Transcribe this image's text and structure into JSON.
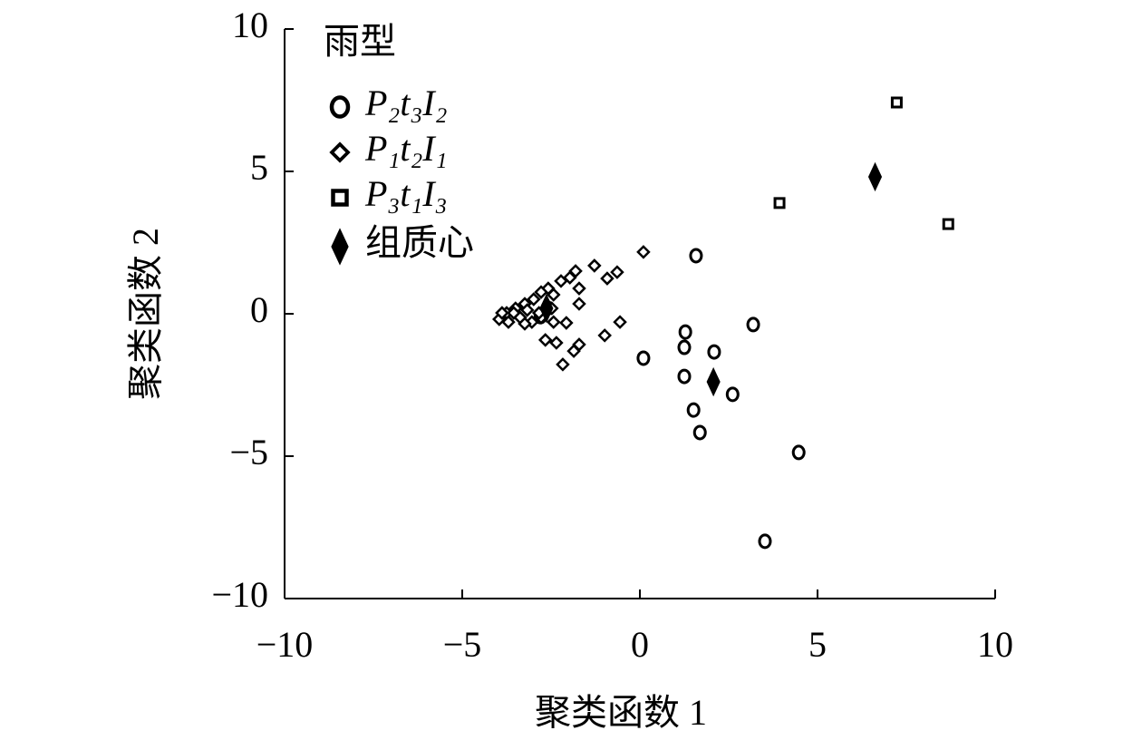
{
  "chart_data": {
    "type": "scatter",
    "xlabel": "聚类函数 1",
    "ylabel": "聚类函数 2",
    "legend_title": "雨型",
    "legend_position": "upper left",
    "xlim": [
      -10,
      10
    ],
    "ylim": [
      -10,
      10
    ],
    "xticks": [
      {
        "value": -10,
        "label": "−10"
      },
      {
        "value": -5,
        "label": "−5"
      },
      0,
      5,
      10
    ],
    "yticks": [
      {
        "value": -10,
        "label": "−10"
      },
      {
        "value": -5,
        "label": "−5"
      },
      0,
      5,
      10
    ],
    "series": [
      {
        "name": "P₂t₃I₂",
        "color": "#000000",
        "marker": "circle",
        "x": [
          1.58,
          3.19,
          1.28,
          1.25,
          2.09,
          0.1,
          1.25,
          2.61,
          1.51,
          1.69,
          4.47,
          3.52,
          -2.6,
          -2.8
        ],
        "values": [
          2.04,
          -0.38,
          -0.64,
          -1.18,
          -1.34,
          -1.56,
          -2.2,
          -2.83,
          -3.38,
          -4.17,
          -4.87,
          -7.99,
          0.2,
          -0.1
        ]
      },
      {
        "name": "P₁t₂I₁",
        "color": "#000000",
        "marker": "diamond",
        "x": [
          0.1,
          -1.28,
          -0.64,
          -0.92,
          -1.81,
          -1.97,
          -1.71,
          -2.22,
          -1.71,
          -2.58,
          -2.43,
          -2.78,
          -2.99,
          -3.24,
          -3.5,
          -3.75,
          -3.96,
          -3.7,
          -3.37,
          -3.04,
          -2.78,
          -2.43,
          -2.07,
          -0.56,
          -0.99,
          -1.71,
          -1.86,
          -2.66,
          -2.35,
          -2.17,
          -2.48,
          -3.88,
          -3.55,
          -3.17,
          -2.84,
          -3.24
        ],
        "values": [
          2.17,
          1.69,
          1.46,
          1.24,
          1.5,
          1.27,
          0.89,
          1.15,
          0.35,
          0.89,
          0.67,
          0.76,
          0.51,
          0.35,
          0.19,
          0.03,
          -0.19,
          -0.29,
          -0.13,
          -0.29,
          -0.13,
          -0.29,
          -0.32,
          -0.29,
          -0.76,
          -1.08,
          -1.31,
          -0.92,
          -1.02,
          -1.78,
          0.19,
          0.03,
          0.03,
          0.13,
          0.03,
          -0.35
        ]
      },
      {
        "name": "P₃t₁I₃",
        "color": "#000000",
        "marker": "square",
        "x": [
          7.23,
          3.93,
          8.68
        ],
        "values": [
          7.42,
          3.89,
          3.15
        ]
      },
      {
        "name": "组质心",
        "color": "#000000",
        "marker": "centroid",
        "x": [
          6.62,
          2.07,
          -2.63
        ],
        "values": [
          4.81,
          -2.39,
          0.19
        ]
      }
    ]
  }
}
